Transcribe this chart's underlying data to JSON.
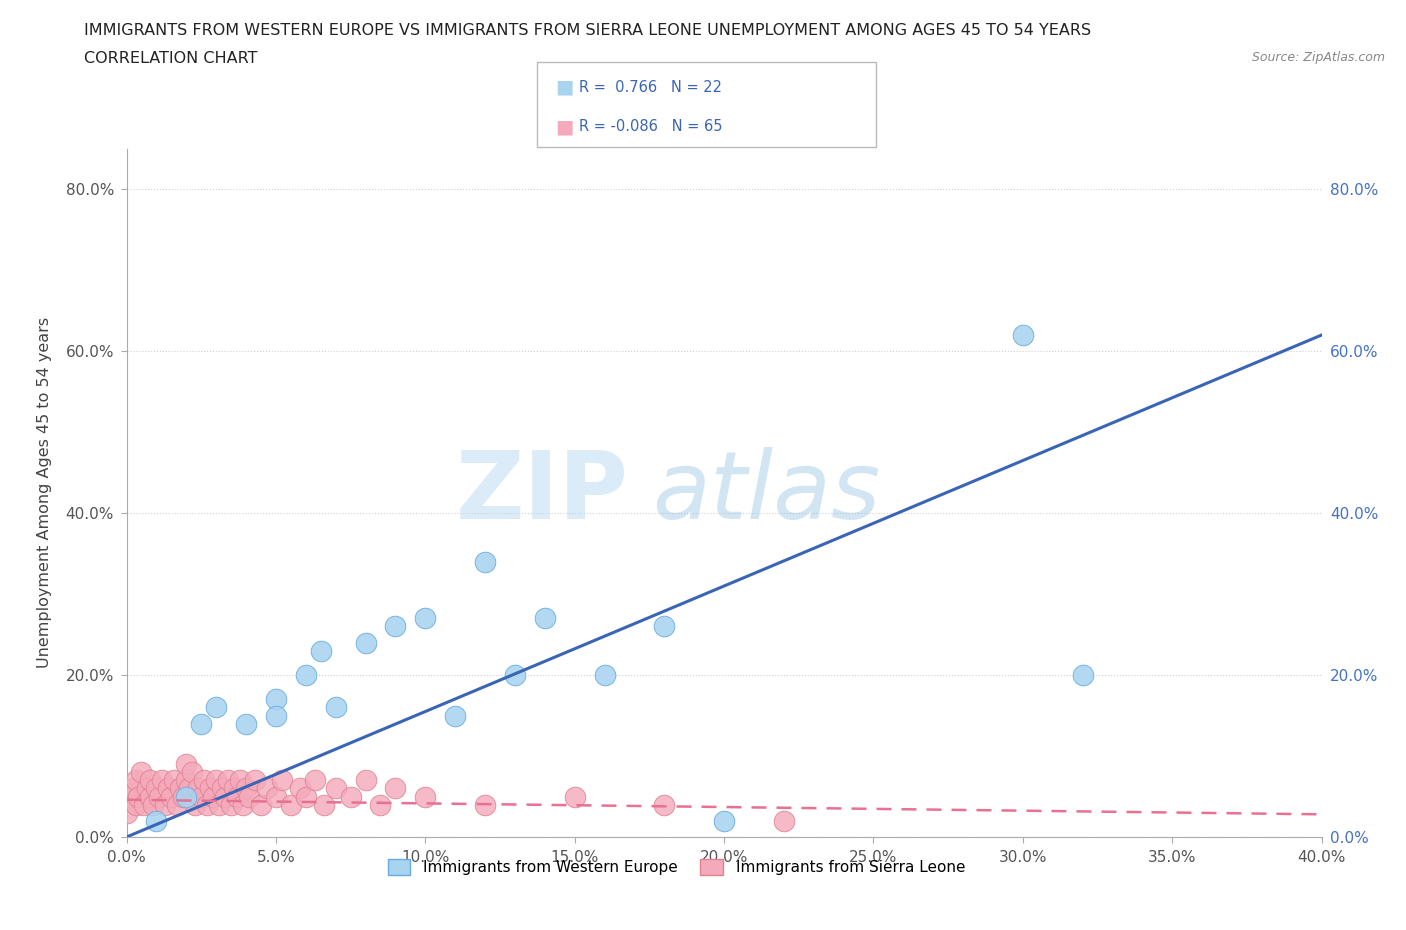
{
  "title_line1": "IMMIGRANTS FROM WESTERN EUROPE VS IMMIGRANTS FROM SIERRA LEONE UNEMPLOYMENT AMONG AGES 45 TO 54 YEARS",
  "title_line2": "CORRELATION CHART",
  "source": "Source: ZipAtlas.com",
  "ylabel": "Unemployment Among Ages 45 to 54 years",
  "xlim": [
    0.0,
    0.4
  ],
  "ylim": [
    0.0,
    0.85
  ],
  "xticks": [
    0.0,
    0.05,
    0.1,
    0.15,
    0.2,
    0.25,
    0.3,
    0.35,
    0.4
  ],
  "yticks": [
    0.0,
    0.2,
    0.4,
    0.6,
    0.8
  ],
  "blue_label": "Immigrants from Western Europe",
  "pink_label": "Immigrants from Sierra Leone",
  "blue_R": 0.766,
  "blue_N": 22,
  "pink_R": -0.086,
  "pink_N": 65,
  "blue_color": "#A8D4F0",
  "blue_edge": "#6AABDF",
  "pink_color": "#F4AABB",
  "pink_edge": "#E08090",
  "blue_line_color": "#3A65B5",
  "pink_line_color": "#E87090",
  "watermark_zip": "ZIP",
  "watermark_atlas": "atlas",
  "blue_scatter_x": [
    0.01,
    0.02,
    0.025,
    0.03,
    0.04,
    0.05,
    0.05,
    0.06,
    0.065,
    0.07,
    0.08,
    0.09,
    0.1,
    0.11,
    0.12,
    0.13,
    0.14,
    0.16,
    0.18,
    0.2,
    0.3,
    0.32
  ],
  "blue_scatter_y": [
    0.02,
    0.05,
    0.14,
    0.16,
    0.14,
    0.17,
    0.15,
    0.2,
    0.23,
    0.16,
    0.24,
    0.26,
    0.27,
    0.15,
    0.34,
    0.2,
    0.27,
    0.2,
    0.26,
    0.02,
    0.62,
    0.2
  ],
  "pink_scatter_x": [
    0.0,
    0.001,
    0.002,
    0.003,
    0.003,
    0.004,
    0.005,
    0.006,
    0.007,
    0.008,
    0.008,
    0.009,
    0.01,
    0.011,
    0.012,
    0.013,
    0.014,
    0.015,
    0.016,
    0.017,
    0.018,
    0.019,
    0.02,
    0.02,
    0.021,
    0.022,
    0.023,
    0.024,
    0.025,
    0.026,
    0.027,
    0.028,
    0.029,
    0.03,
    0.031,
    0.032,
    0.033,
    0.034,
    0.035,
    0.036,
    0.037,
    0.038,
    0.039,
    0.04,
    0.041,
    0.043,
    0.045,
    0.047,
    0.05,
    0.052,
    0.055,
    0.058,
    0.06,
    0.063,
    0.066,
    0.07,
    0.075,
    0.08,
    0.085,
    0.09,
    0.1,
    0.12,
    0.15,
    0.18,
    0.22
  ],
  "pink_scatter_y": [
    0.03,
    0.05,
    0.06,
    0.04,
    0.07,
    0.05,
    0.08,
    0.04,
    0.06,
    0.05,
    0.07,
    0.04,
    0.06,
    0.05,
    0.07,
    0.04,
    0.06,
    0.05,
    0.07,
    0.04,
    0.06,
    0.05,
    0.07,
    0.09,
    0.06,
    0.08,
    0.04,
    0.06,
    0.05,
    0.07,
    0.04,
    0.06,
    0.05,
    0.07,
    0.04,
    0.06,
    0.05,
    0.07,
    0.04,
    0.06,
    0.05,
    0.07,
    0.04,
    0.06,
    0.05,
    0.07,
    0.04,
    0.06,
    0.05,
    0.07,
    0.04,
    0.06,
    0.05,
    0.07,
    0.04,
    0.06,
    0.05,
    0.07,
    0.04,
    0.06,
    0.05,
    0.04,
    0.05,
    0.04,
    0.02
  ],
  "blue_line_x": [
    0.0,
    0.4
  ],
  "blue_line_y": [
    0.0,
    0.62
  ],
  "pink_line_x": [
    0.0,
    0.4
  ],
  "pink_line_y": [
    0.046,
    0.028
  ]
}
